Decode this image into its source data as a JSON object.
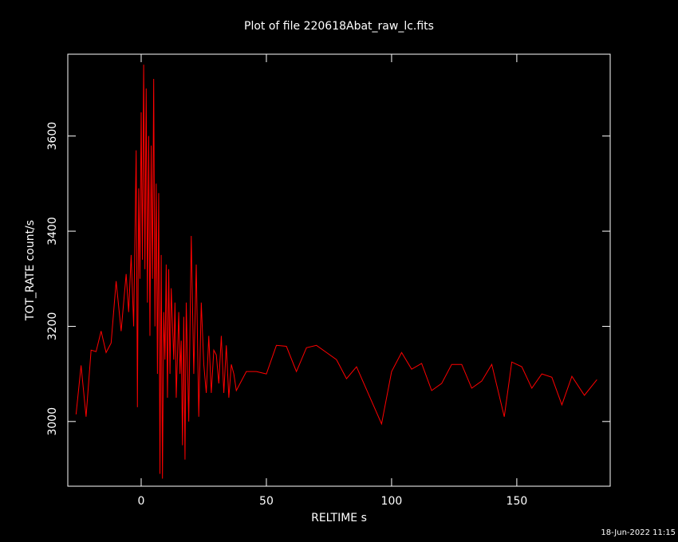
{
  "chart_data": {
    "type": "line",
    "title": "Plot of file 220618Abat_raw_lc.fits",
    "xlabel": "RELTIME  s",
    "ylabel": "TOT_RATE  count/s",
    "footer": "18-Jun-2022 11:15",
    "xlim": [
      -29.3,
      187.3
    ],
    "ylim": [
      2864,
      3772
    ],
    "xticks": [
      0,
      50,
      100,
      150
    ],
    "yticks": [
      3000,
      3200,
      3400,
      3600
    ],
    "series": [
      {
        "color": "#ff0000",
        "x": [
          -26,
          -24,
          -22,
          -20,
          -18,
          -16,
          -14,
          -12,
          -10,
          -8,
          -6,
          -5,
          -4,
          -3,
          -2,
          -1.5,
          -1,
          -0.5,
          0,
          0.5,
          1,
          1.5,
          2,
          2.5,
          3,
          3.5,
          4,
          4.5,
          5,
          5.5,
          6,
          6.5,
          7,
          7.5,
          8,
          8.5,
          9,
          9.5,
          10,
          10.5,
          11,
          11.5,
          12,
          13,
          13.5,
          14,
          15,
          15.5,
          16,
          16.5,
          17,
          17.5,
          18,
          19,
          20,
          21,
          22,
          23,
          24,
          25,
          26,
          27,
          28,
          29,
          30,
          31,
          32,
          33,
          34,
          35,
          36,
          37,
          38,
          42,
          46,
          50,
          54,
          58,
          62,
          66,
          70,
          74,
          78,
          82,
          86,
          96,
          100,
          104,
          108,
          112,
          116,
          120,
          124,
          128,
          132,
          136,
          140,
          145,
          148,
          152,
          156,
          160,
          164,
          168,
          172,
          177,
          182
        ],
        "values": [
          3015,
          3118,
          3010,
          3150,
          3147,
          3190,
          3145,
          3165,
          3295,
          3190,
          3310,
          3230,
          3350,
          3200,
          3570,
          3030,
          3490,
          3300,
          3650,
          3340,
          3750,
          3320,
          3700,
          3250,
          3600,
          3180,
          3580,
          3300,
          3720,
          3200,
          3500,
          3100,
          3480,
          2890,
          3350,
          2880,
          3230,
          3130,
          3330,
          3050,
          3320,
          3100,
          3280,
          3130,
          3250,
          3050,
          3230,
          3100,
          3170,
          2950,
          3220,
          2920,
          3250,
          3000,
          3390,
          3100,
          3330,
          3010,
          3250,
          3120,
          3060,
          3180,
          3060,
          3150,
          3140,
          3080,
          3180,
          3060,
          3160,
          3050,
          3120,
          3100,
          3065,
          3105,
          3105,
          3100,
          3160,
          3158,
          3105,
          3155,
          3160,
          3145,
          3130,
          3090,
          3115,
          2995,
          3105,
          3145,
          3110,
          3122,
          3065,
          3080,
          3120,
          3120,
          3070,
          3085,
          3120,
          3010,
          3125,
          3115,
          3070,
          3100,
          3093,
          3035,
          3095,
          3055,
          3088
        ]
      }
    ]
  }
}
